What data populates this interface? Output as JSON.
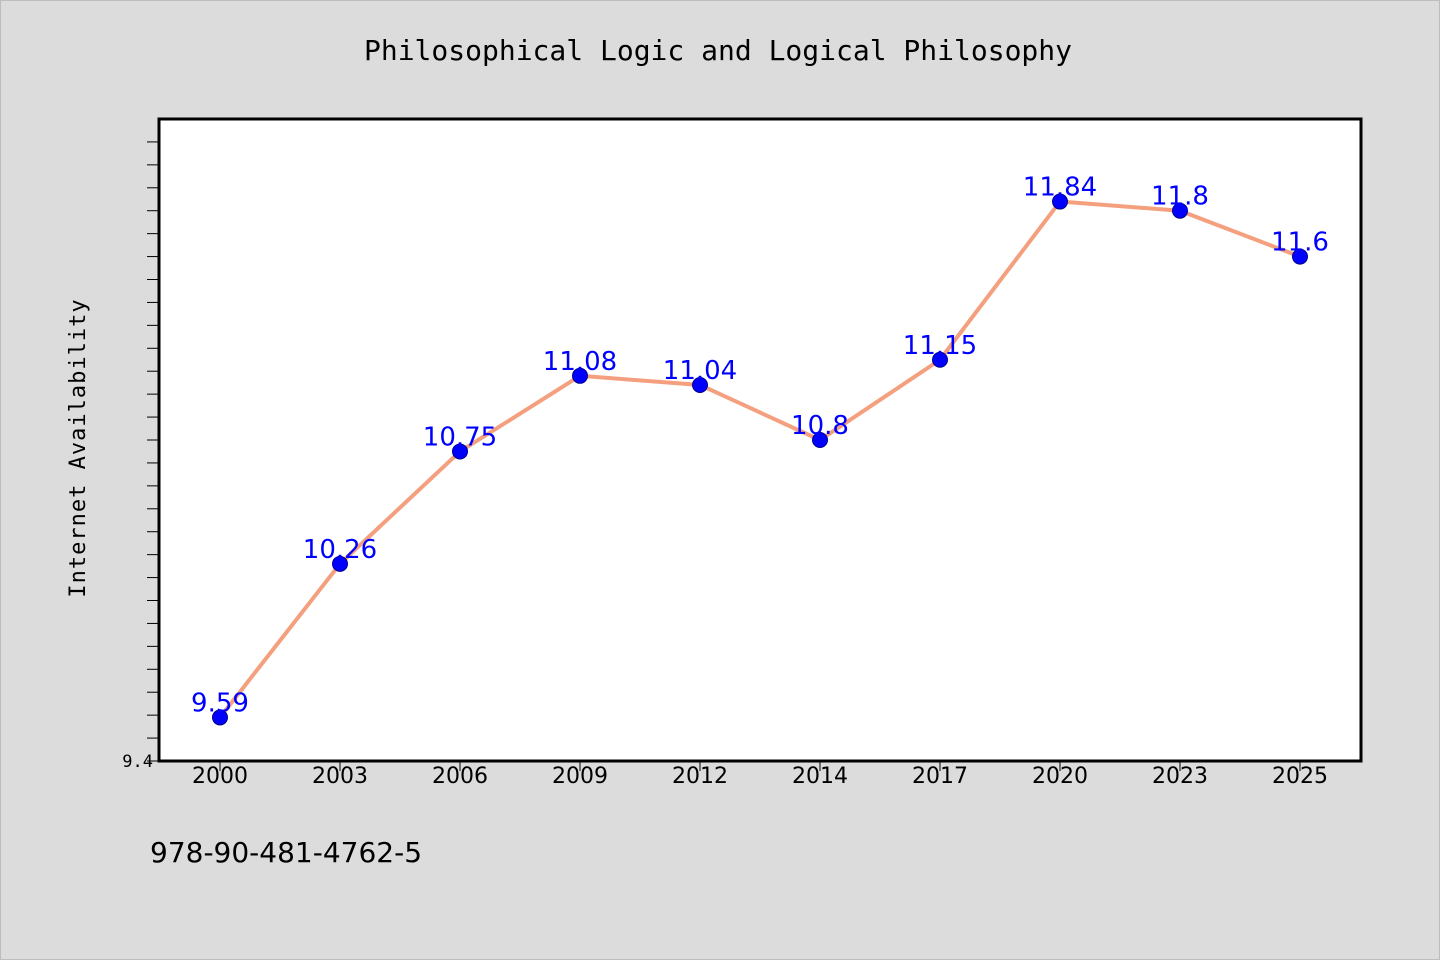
{
  "chart_data": {
    "type": "line",
    "title": "Philosophical Logic and Logical Philosophy",
    "xlabel": "",
    "ylabel": "Internet Availability",
    "categories": [
      "2000",
      "2003",
      "2006",
      "2009",
      "2012",
      "2014",
      "2017",
      "2020",
      "2023",
      "2025"
    ],
    "series": [
      {
        "values": [
          9.59,
          10.26,
          10.75,
          11.08,
          11.04,
          10.8,
          11.15,
          11.84,
          11.8,
          11.6
        ]
      }
    ],
    "data_labels": [
      "9.59",
      "10.26",
      "10.75",
      "11.08",
      "11.04",
      "10.8",
      "11.15",
      "11.84",
      "11.8",
      "11.6"
    ],
    "ylim": [
      9.4,
      12.2
    ],
    "yticks_labeled": [
      "9.4"
    ],
    "grid": false,
    "legend": "none",
    "footnote": "978-90-481-4762-5",
    "colors": {
      "background": "#dcdcdc",
      "plot_background": "#ffffff",
      "line": "#f4a07f",
      "marker": "#0000ff",
      "data_label": "#0000ff"
    }
  }
}
